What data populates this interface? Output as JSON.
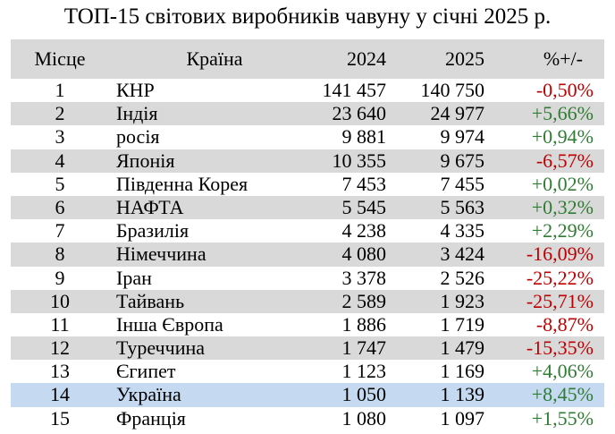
{
  "title": "ТОП-15 світових виробників чавуну у січні 2025 р.",
  "colors": {
    "header_bg": "#d9d9d9",
    "stripe_bg": "#d9d9d9",
    "highlight_bg": "#c5d9f1",
    "negative": "#c00000",
    "positive": "#2e7d32"
  },
  "headers": {
    "place": "Місце",
    "country": "Країна",
    "y2024": "2024",
    "y2025": "2025",
    "change": "%+/-"
  },
  "rows": [
    {
      "place": "1",
      "country": "КНР",
      "y2024": "141 457",
      "y2025": "140 750",
      "change": "-0,50%",
      "sign": "neg",
      "shade": false,
      "highlight": false
    },
    {
      "place": "2",
      "country": "Індія",
      "y2024": "23 640",
      "y2025": "24 977",
      "change": "+5,66%",
      "sign": "pos",
      "shade": true,
      "highlight": false
    },
    {
      "place": "3",
      "country": "росія",
      "y2024": "9 881",
      "y2025": "9 974",
      "change": "+0,94%",
      "sign": "pos",
      "shade": false,
      "highlight": false
    },
    {
      "place": "4",
      "country": "Японія",
      "y2024": "10 355",
      "y2025": "9 675",
      "change": "-6,57%",
      "sign": "neg",
      "shade": true,
      "highlight": false
    },
    {
      "place": "5",
      "country": "Південна Корея",
      "y2024": "7 453",
      "y2025": "7 455",
      "change": "+0,02%",
      "sign": "pos",
      "shade": false,
      "highlight": false
    },
    {
      "place": "6",
      "country": "НАФТА",
      "y2024": "5 545",
      "y2025": "5 563",
      "change": "+0,32%",
      "sign": "pos",
      "shade": true,
      "highlight": false
    },
    {
      "place": "7",
      "country": "Бразилія",
      "y2024": "4 238",
      "y2025": "4 335",
      "change": "+2,29%",
      "sign": "pos",
      "shade": false,
      "highlight": false
    },
    {
      "place": "8",
      "country": "Німеччина",
      "y2024": "4 080",
      "y2025": "3 424",
      "change": "-16,09%",
      "sign": "neg",
      "shade": true,
      "highlight": false
    },
    {
      "place": "9",
      "country": "Іран",
      "y2024": "3 378",
      "y2025": "2 526",
      "change": "-25,22%",
      "sign": "neg",
      "shade": false,
      "highlight": false
    },
    {
      "place": "10",
      "country": "Тайвань",
      "y2024": "2 589",
      "y2025": "1 923",
      "change": "-25,71%",
      "sign": "neg",
      "shade": true,
      "highlight": false
    },
    {
      "place": "11",
      "country": "Інша Європа",
      "y2024": "1 886",
      "y2025": "1 719",
      "change": "-8,87%",
      "sign": "neg",
      "shade": false,
      "highlight": false
    },
    {
      "place": "12",
      "country": "Туреччина",
      "y2024": "1 747",
      "y2025": "1 479",
      "change": "-15,35%",
      "sign": "neg",
      "shade": true,
      "highlight": false
    },
    {
      "place": "13",
      "country": "Єгипет",
      "y2024": "1 123",
      "y2025": "1 169",
      "change": "+4,06%",
      "sign": "pos",
      "shade": false,
      "highlight": false
    },
    {
      "place": "14",
      "country": "Україна",
      "y2024": "1 050",
      "y2025": "1 139",
      "change": "+8,45%",
      "sign": "pos",
      "shade": false,
      "highlight": true
    },
    {
      "place": "15",
      "country": "Франція",
      "y2024": "1 080",
      "y2025": "1 097",
      "change": "+1,55%",
      "sign": "pos",
      "shade": false,
      "highlight": false
    }
  ]
}
